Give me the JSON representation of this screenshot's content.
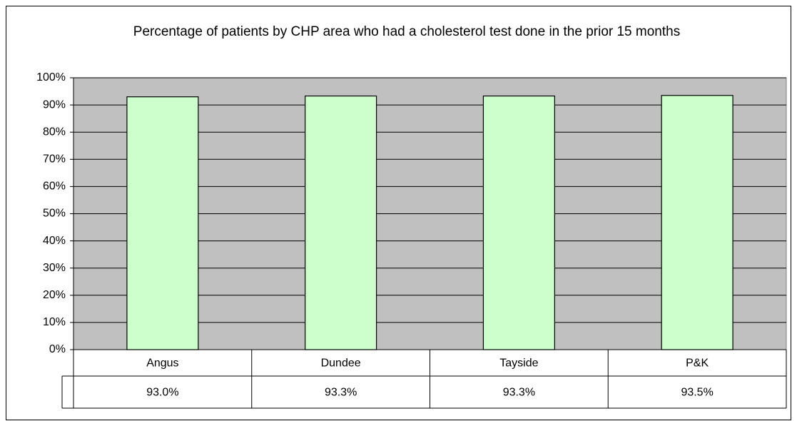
{
  "chart_data": {
    "type": "bar",
    "title": "Percentage of patients by CHP area who had a cholesterol test done in the prior 15 months",
    "categories": [
      "Angus",
      "Dundee",
      "Tayside",
      "P&K"
    ],
    "values": [
      93.0,
      93.3,
      93.3,
      93.5
    ],
    "value_labels": [
      "93.0%",
      "93.3%",
      "93.3%",
      "93.5%"
    ],
    "color": "#ccffcc",
    "ylim": [
      0,
      100
    ],
    "yticks": [
      {
        "value": 0,
        "label": "0%"
      },
      {
        "value": 10,
        "label": "10%"
      },
      {
        "value": 20,
        "label": "20%"
      },
      {
        "value": 30,
        "label": "30%"
      },
      {
        "value": 40,
        "label": "40%"
      },
      {
        "value": 50,
        "label": "50%"
      },
      {
        "value": 60,
        "label": "60%"
      },
      {
        "value": 70,
        "label": "70%"
      },
      {
        "value": 80,
        "label": "80%"
      },
      {
        "value": 90,
        "label": "90%"
      },
      {
        "value": 100,
        "label": "100%"
      }
    ],
    "grid": true
  }
}
